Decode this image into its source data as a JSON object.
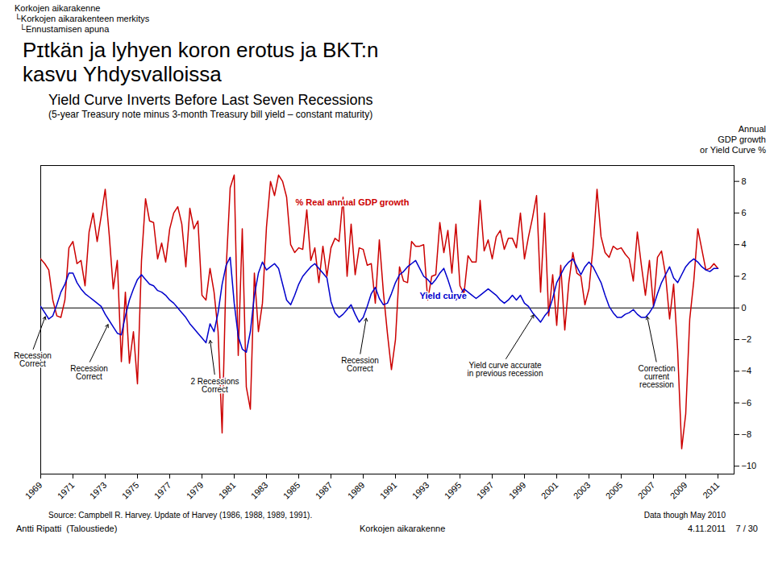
{
  "chart_data": {
    "type": "line",
    "header": [
      "Korkojen aikarakenne",
      "└Korkojen aikarakenteen merkitys",
      "  └Ennustamisen apuna"
    ],
    "main_title": [
      "Pɪtkän ja lyhyen koron erotus ja BKT:n",
      "kasvu Yhdysvalloissa"
    ],
    "title": "Yield Curve Inverts Before Last Seven Recessions",
    "subtitle": "(5-year Treasury note minus 3-month Treasury bill yield – constant maturity)",
    "ylabel": "Annual\nGDP growth\nor Yield Curve %",
    "source": "Source: Campbell R. Harvey. Update of Harvey (1986, 1988, 1989, 1991).",
    "note": "Data though May 2010",
    "footer": [
      "Antti Ripatti  (Taloustiede)",
      "Korkojen aikarakenne",
      "4.11.2011    7 / 30"
    ],
    "xlim": [
      1969,
      2012
    ],
    "xticks": [
      1969,
      1971,
      1973,
      1975,
      1977,
      1979,
      1981,
      1983,
      1985,
      1987,
      1989,
      1991,
      1993,
      1995,
      1997,
      1999,
      2001,
      2003,
      2005,
      2007,
      2009,
      2011
    ],
    "ylim": [
      -10.5,
      9.0
    ],
    "yticks": [
      -10,
      -8,
      -6,
      -4,
      -2,
      0,
      2,
      4,
      6,
      8
    ],
    "x": [
      1969,
      1969.25,
      1969.5,
      1969.75,
      1970,
      1970.25,
      1970.5,
      1970.75,
      1971,
      1971.25,
      1971.5,
      1971.75,
      1972,
      1972.25,
      1972.5,
      1972.75,
      1973,
      1973.25,
      1973.5,
      1973.75,
      1974,
      1974.25,
      1974.5,
      1974.75,
      1975,
      1975.25,
      1975.5,
      1975.75,
      1976,
      1976.25,
      1976.5,
      1976.75,
      1977,
      1977.25,
      1977.5,
      1977.75,
      1978,
      1978.25,
      1978.5,
      1978.75,
      1979,
      1979.25,
      1979.5,
      1979.75,
      1980,
      1980.25,
      1980.5,
      1980.75,
      1981,
      1981.25,
      1981.5,
      1981.75,
      1982,
      1982.25,
      1982.5,
      1982.75,
      1983,
      1983.25,
      1983.5,
      1983.75,
      1984,
      1984.25,
      1984.5,
      1984.75,
      1985,
      1985.25,
      1985.5,
      1985.75,
      1986,
      1986.25,
      1986.5,
      1986.75,
      1987,
      1987.25,
      1987.5,
      1987.75,
      1988,
      1988.25,
      1988.5,
      1988.75,
      1989,
      1989.25,
      1989.5,
      1989.75,
      1990,
      1990.25,
      1990.5,
      1990.75,
      1991,
      1991.25,
      1991.5,
      1991.75,
      1992,
      1992.25,
      1992.5,
      1992.75,
      1993,
      1993.25,
      1993.5,
      1993.75,
      1994,
      1994.25,
      1994.5,
      1994.75,
      1995,
      1995.25,
      1995.5,
      1995.75,
      1996,
      1996.25,
      1996.5,
      1996.75,
      1997,
      1997.25,
      1997.5,
      1997.75,
      1998,
      1998.25,
      1998.5,
      1998.75,
      1999,
      1999.25,
      1999.5,
      1999.75,
      2000,
      2000.25,
      2000.5,
      2000.75,
      2001,
      2001.25,
      2001.5,
      2001.75,
      2002,
      2002.25,
      2002.5,
      2002.75,
      2003,
      2003.25,
      2003.5,
      2003.75,
      2004,
      2004.25,
      2004.5,
      2004.75,
      2005,
      2005.25,
      2005.5,
      2005.75,
      2006,
      2006.25,
      2006.5,
      2006.75,
      2007,
      2007.25,
      2007.5,
      2007.75,
      2008,
      2008.25,
      2008.5,
      2008.75,
      2009,
      2009.25,
      2009.5,
      2009.75,
      2010,
      2010.25,
      2010.5,
      2010.75,
      2011
    ],
    "series": [
      {
        "name": "% Real annual GDP growth",
        "color": "#cc0000",
        "label_x": 1984.8,
        "label_y": 6.5,
        "values": [
          3.1,
          2.8,
          2.4,
          0.5,
          -0.5,
          -0.6,
          0.5,
          3.8,
          4.2,
          2.8,
          3.0,
          1.4,
          4.8,
          6.0,
          4.2,
          5.8,
          7.5,
          4.6,
          1.2,
          3.0,
          -3.4,
          1.0,
          -3.5,
          -1.5,
          -4.8,
          3.0,
          6.9,
          5.5,
          5.4,
          3.1,
          4.1,
          2.9,
          5.0,
          6.0,
          6.4,
          5.3,
          2.6,
          6.3,
          5.0,
          5.5,
          0.8,
          0.5,
          2.5,
          1.0,
          -1.5,
          -7.9,
          2.5,
          7.6,
          8.4,
          -3.0,
          5.0,
          -5.0,
          -6.4,
          2.2,
          -1.5,
          0.3,
          5.1,
          8.0,
          7.1,
          8.4,
          8.0,
          7.0,
          4.0,
          3.5,
          3.8,
          3.7,
          6.2,
          3.0,
          3.8,
          1.6,
          3.9,
          2.0,
          3.8,
          4.4,
          4.2,
          7.0,
          2.0,
          5.3,
          2.1,
          3.8,
          3.7,
          2.7,
          2.8,
          0.3,
          4.3,
          1.0,
          -1.6,
          -3.9,
          -2.0,
          2.6,
          1.7,
          1.6,
          4.2,
          3.9,
          3.9,
          4.0,
          0.5,
          2.0,
          2.1,
          5.4,
          3.5,
          4.9,
          2.2,
          5.3,
          1.4,
          0.9,
          3.3,
          2.9,
          2.9,
          6.8,
          3.6,
          4.3,
          3.1,
          4.5,
          4.9,
          3.7,
          4.4,
          4.4,
          3.8,
          6.0,
          3.1,
          4.5,
          5.7,
          7.1,
          1.0,
          6.0,
          -0.5,
          2.1,
          -1.1,
          2.7,
          -1.4,
          1.6,
          3.5,
          2.2,
          2.0,
          0.2,
          1.2,
          3.8,
          7.5,
          4.5,
          3.5,
          3.2,
          3.9,
          3.7,
          3.8,
          3.4,
          3.1,
          1.7,
          4.8,
          2.7,
          0.8,
          3.0,
          0.1,
          3.2,
          3.6,
          2.1,
          -0.7,
          1.5,
          -2.7,
          -8.9,
          -6.7,
          -0.7,
          1.7,
          5.0,
          3.7,
          2.4,
          2.5,
          2.8,
          2.5
        ]
      },
      {
        "name": "Yield curve",
        "color": "#0000cc",
        "label_x": 1992.5,
        "label_y": 0.55,
        "values": [
          0.1,
          -0.3,
          -0.7,
          -0.5,
          0.2,
          1.0,
          1.5,
          2.2,
          2.2,
          1.6,
          1.2,
          0.9,
          0.7,
          0.5,
          0.3,
          0.1,
          -0.4,
          -0.8,
          -1.2,
          -1.6,
          -1.7,
          -0.5,
          0.5,
          1.2,
          1.8,
          2.1,
          1.8,
          1.5,
          1.4,
          1.1,
          1.0,
          0.8,
          0.5,
          0.3,
          0.0,
          -0.3,
          -0.6,
          -1.0,
          -1.3,
          -1.6,
          -1.9,
          -2.2,
          -1.0,
          -1.5,
          -0.3,
          1.5,
          2.7,
          3.2,
          0.3,
          -1.8,
          -2.6,
          -2.8,
          -1.5,
          0.8,
          2.2,
          2.9,
          2.4,
          2.6,
          2.8,
          2.5,
          1.5,
          0.5,
          0.2,
          0.8,
          1.5,
          2.0,
          2.3,
          2.6,
          2.8,
          2.5,
          2.2,
          1.9,
          0.4,
          -0.3,
          -0.6,
          -0.4,
          -0.1,
          0.2,
          -0.4,
          -0.9,
          -0.6,
          0.1,
          0.9,
          1.3,
          0.6,
          0.2,
          0.3,
          0.9,
          1.6,
          2.1,
          2.3,
          2.6,
          2.8,
          3.0,
          2.5,
          2.0,
          1.8,
          1.5,
          1.8,
          2.2,
          2.5,
          1.8,
          1.0,
          0.5,
          0.8,
          1.2,
          1.0,
          0.8,
          0.6,
          0.8,
          1.0,
          1.2,
          1.0,
          0.8,
          0.5,
          0.3,
          0.5,
          0.8,
          0.5,
          0.8,
          0.3,
          0.1,
          -0.3,
          -0.6,
          -0.9,
          -0.5,
          -0.2,
          0.6,
          1.6,
          2.1,
          2.6,
          2.9,
          3.1,
          2.6,
          2.1,
          2.6,
          2.9,
          2.6,
          2.1,
          1.6,
          0.8,
          0.1,
          -0.3,
          -0.6,
          -0.6,
          -0.4,
          -0.3,
          -0.1,
          -0.4,
          -0.6,
          -0.6,
          -0.3,
          0.1,
          0.9,
          1.6,
          2.1,
          2.6,
          1.9,
          1.6,
          2.1,
          2.6,
          2.9,
          3.1,
          2.9,
          2.6,
          2.4,
          2.3,
          2.5,
          2.5
        ]
      }
    ],
    "annotations": [
      {
        "text": "Recession\nCorrect",
        "x": 1969.3,
        "y": -0.5,
        "text_x": 1968.5,
        "text_y": -2.7
      },
      {
        "text": "Recession\nCorrect",
        "x": 1973.2,
        "y": -1.0,
        "text_x": 1972.0,
        "text_y": -3.5
      },
      {
        "text": "2 Recessions\nCorrect",
        "x": 1979.5,
        "y": -2.0,
        "text_x": 1979.8,
        "text_y": -4.3
      },
      {
        "text": "Recession\nCorrect",
        "x": 1989.2,
        "y": -0.6,
        "text_x": 1988.8,
        "text_y": -3.0
      },
      {
        "text": "Yield curve accurate\nin previous recession",
        "x": 1999.6,
        "y": -0.4,
        "text_x": 1997.8,
        "text_y": -3.3
      },
      {
        "text": "Correction\ncurrent\nrecession",
        "x": 2006.6,
        "y": -0.5,
        "text_x": 2007.2,
        "text_y": -3.5
      }
    ]
  }
}
